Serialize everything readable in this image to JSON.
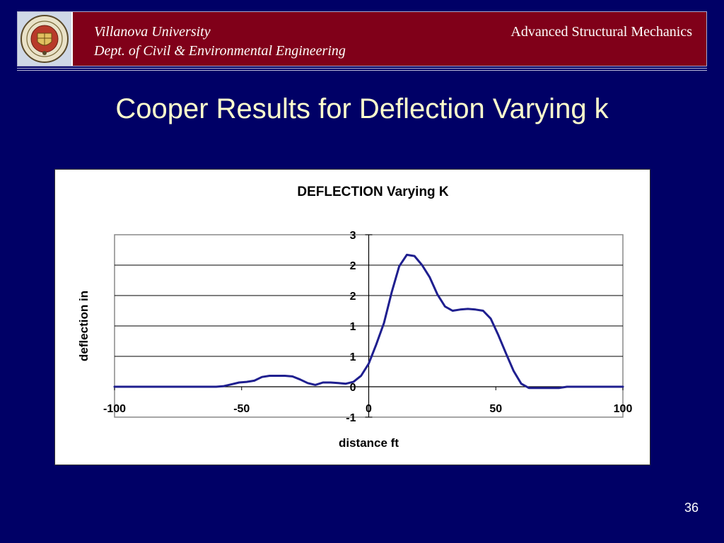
{
  "header": {
    "university": "Villanova University",
    "department": "Dept. of Civil & Environmental Engineering",
    "course": "Advanced Structural Mechanics",
    "logo_icon": "university-seal-icon"
  },
  "slide": {
    "title": "Cooper Results for Deflection Varying k",
    "page_number": "36"
  },
  "colors": {
    "background": "#000066",
    "banner": "#800019",
    "title": "#ffffcc",
    "series": "#1f1f8f"
  },
  "chart_data": {
    "type": "line",
    "title": "DEFLECTION Varying K",
    "xlabel": "distance ft",
    "ylabel": "deflection in",
    "xlim": [
      -100,
      100
    ],
    "ylim": [
      -0.5,
      2.5
    ],
    "x_ticks": [
      -100,
      -50,
      0,
      50,
      100
    ],
    "x_tick_labels": [
      "-100",
      "-50",
      "0",
      "50",
      "100"
    ],
    "y_ticks": [
      -0.5,
      0,
      0.5,
      1,
      1.5,
      2,
      2.5
    ],
    "y_tick_labels": [
      "-1",
      "0",
      "1",
      "1",
      "2",
      "2",
      "3"
    ],
    "grid": true,
    "legend": "none",
    "series": [
      {
        "x": [
          -100,
          -60,
          -57,
          -54,
          -51,
          -48,
          -45,
          -42,
          -39,
          -36,
          -33,
          -30,
          -27,
          -24,
          -21,
          -18,
          -15,
          -12,
          -9,
          -6,
          -3,
          0,
          3,
          6,
          9,
          12,
          15,
          18,
          21,
          24,
          27,
          30,
          33,
          36,
          39,
          42,
          45,
          48,
          51,
          54,
          57,
          60,
          63,
          66,
          69,
          72,
          75,
          78,
          100
        ],
        "y": [
          0,
          0,
          0.01,
          0.04,
          0.07,
          0.08,
          0.1,
          0.16,
          0.18,
          0.18,
          0.18,
          0.17,
          0.12,
          0.06,
          0.03,
          0.07,
          0.07,
          0.06,
          0.05,
          0.08,
          0.18,
          0.38,
          0.7,
          1.05,
          1.55,
          1.98,
          2.17,
          2.15,
          2.0,
          1.8,
          1.52,
          1.32,
          1.25,
          1.27,
          1.28,
          1.27,
          1.25,
          1.12,
          0.85,
          0.55,
          0.26,
          0.05,
          -0.02,
          -0.02,
          -0.02,
          -0.02,
          -0.02,
          0.0,
          0.0
        ]
      }
    ]
  }
}
